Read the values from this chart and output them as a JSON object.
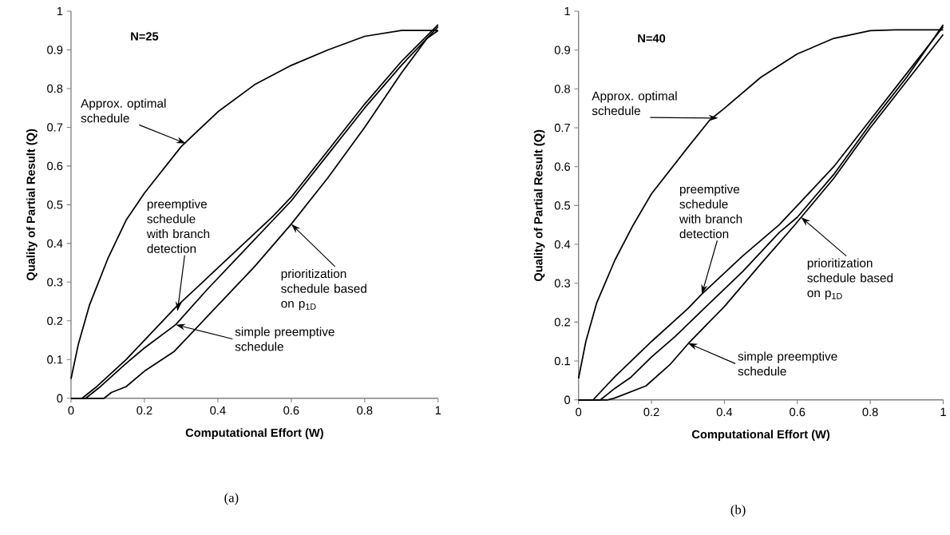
{
  "chart_data": [
    {
      "type": "line",
      "title": "N=25",
      "xlabel": "Computational Effort (W)",
      "ylabel": "Quality of Partial Result (Q)",
      "xlim": [
        0,
        1
      ],
      "ylim": [
        0,
        1
      ],
      "xticks": [
        0,
        0.2,
        0.4,
        0.6,
        0.8,
        1
      ],
      "yticks": [
        0,
        0.1,
        0.2,
        0.3,
        0.4,
        0.5,
        0.6,
        0.7,
        0.8,
        0.9,
        1
      ],
      "marker": "none",
      "line_style": "solid",
      "series": [
        {
          "color": "#000000",
          "x": [
            0,
            0.02,
            0.05,
            0.1,
            0.15,
            0.2,
            0.3,
            0.4,
            0.5,
            0.6,
            0.7,
            0.8,
            0.9,
            1
          ],
          "values": [
            0.05,
            0.14,
            0.24,
            0.36,
            0.46,
            0.53,
            0.65,
            0.74,
            0.81,
            0.86,
            0.9,
            0.935,
            0.95,
            0.95
          ]
        },
        {
          "color": "#000000",
          "x": [
            0,
            0.03,
            0.07,
            0.15,
            0.2,
            0.285,
            0.37,
            0.46,
            0.55,
            0.6,
            0.7,
            0.8,
            0.9,
            1
          ],
          "values": [
            0,
            0,
            0.03,
            0.1,
            0.15,
            0.235,
            0.31,
            0.39,
            0.47,
            0.52,
            0.64,
            0.76,
            0.87,
            0.965
          ]
        },
        {
          "color": "#000000",
          "x": [
            0,
            0.04,
            0.08,
            0.15,
            0.2,
            0.285,
            0.37,
            0.46,
            0.55,
            0.6,
            0.7,
            0.8,
            0.9,
            1
          ],
          "values": [
            0,
            0,
            0.03,
            0.09,
            0.13,
            0.19,
            0.28,
            0.37,
            0.46,
            0.51,
            0.63,
            0.75,
            0.86,
            0.96
          ]
        },
        {
          "color": "#000000",
          "x": [
            0,
            0.09,
            0.11,
            0.15,
            0.2,
            0.28,
            0.37,
            0.45,
            0.5,
            0.6,
            0.7,
            0.8,
            0.9,
            0.97,
            1
          ],
          "values": [
            0,
            0,
            0.015,
            0.03,
            0.07,
            0.12,
            0.21,
            0.29,
            0.34,
            0.45,
            0.57,
            0.7,
            0.84,
            0.93,
            0.95
          ]
        }
      ],
      "annotations": [
        {
          "text": "Approx. optimal schedule",
          "x": 0.313,
          "y": 0.658
        },
        {
          "text": "preemptive schedule with branch detection",
          "x": 0.29,
          "y": 0.225
        },
        {
          "text": "prioritization schedule based on p$_{1D}$",
          "x": 0.6,
          "y": 0.45
        },
        {
          "text": "simple preemptive schedule",
          "x": 0.285,
          "y": 0.19
        },
        "(a)"
      ]
    },
    {
      "type": "line",
      "title": "N=40",
      "xlabel": "Computational Effort (W)",
      "ylabel": "Quality of Partial Result (Q)",
      "xlim": [
        0,
        1
      ],
      "ylim": [
        0,
        1
      ],
      "xticks": [
        0,
        0.2,
        0.4,
        0.6,
        0.8,
        1
      ],
      "yticks": [
        0,
        0.1,
        0.2,
        0.3,
        0.4,
        0.5,
        0.6,
        0.7,
        0.8,
        0.9,
        1
      ],
      "marker": "none",
      "line_style": "solid",
      "series": [
        {
          "color": "#000000",
          "x": [
            0,
            0.02,
            0.05,
            0.1,
            0.15,
            0.2,
            0.3,
            0.36,
            0.4,
            0.5,
            0.6,
            0.7,
            0.8,
            0.87,
            1
          ],
          "values": [
            0.055,
            0.15,
            0.25,
            0.36,
            0.45,
            0.53,
            0.65,
            0.72,
            0.75,
            0.83,
            0.89,
            0.93,
            0.95,
            0.952,
            0.952
          ]
        },
        {
          "color": "#000000",
          "x": [
            0,
            0.04,
            0.06,
            0.1,
            0.2,
            0.3,
            0.338,
            0.45,
            0.55,
            0.6,
            0.7,
            0.8,
            0.9,
            1
          ],
          "values": [
            0,
            0,
            0.02,
            0.06,
            0.15,
            0.235,
            0.272,
            0.37,
            0.45,
            0.5,
            0.6,
            0.72,
            0.84,
            0.96
          ]
        },
        {
          "color": "#000000",
          "x": [
            0,
            0.06,
            0.1,
            0.142,
            0.2,
            0.265,
            0.35,
            0.45,
            0.55,
            0.6,
            0.7,
            0.8,
            0.9,
            1
          ],
          "values": [
            0,
            0,
            0.03,
            0.057,
            0.11,
            0.163,
            0.24,
            0.33,
            0.43,
            0.47,
            0.58,
            0.71,
            0.83,
            0.965
          ]
        },
        {
          "color": "#000000",
          "x": [
            0,
            0.08,
            0.1,
            0.185,
            0.25,
            0.302,
            0.4,
            0.5,
            0.593,
            0.7,
            0.8,
            0.9,
            1
          ],
          "values": [
            0,
            0,
            0.005,
            0.036,
            0.09,
            0.146,
            0.24,
            0.35,
            0.45,
            0.57,
            0.7,
            0.82,
            0.94
          ]
        }
      ],
      "annotations": [
        {
          "text": "Approx. optimal schedule",
          "x": 0.383,
          "y": 0.725
        },
        {
          "text": "preemptive schedule with branch detection",
          "x": 0.338,
          "y": 0.272
        },
        {
          "text": "prioritization schedule based on p$_{1D}$",
          "x": 0.61,
          "y": 0.47
        },
        {
          "text": "simple preemptive schedule",
          "x": 0.3,
          "y": 0.146
        },
        "(b)"
      ]
    }
  ]
}
